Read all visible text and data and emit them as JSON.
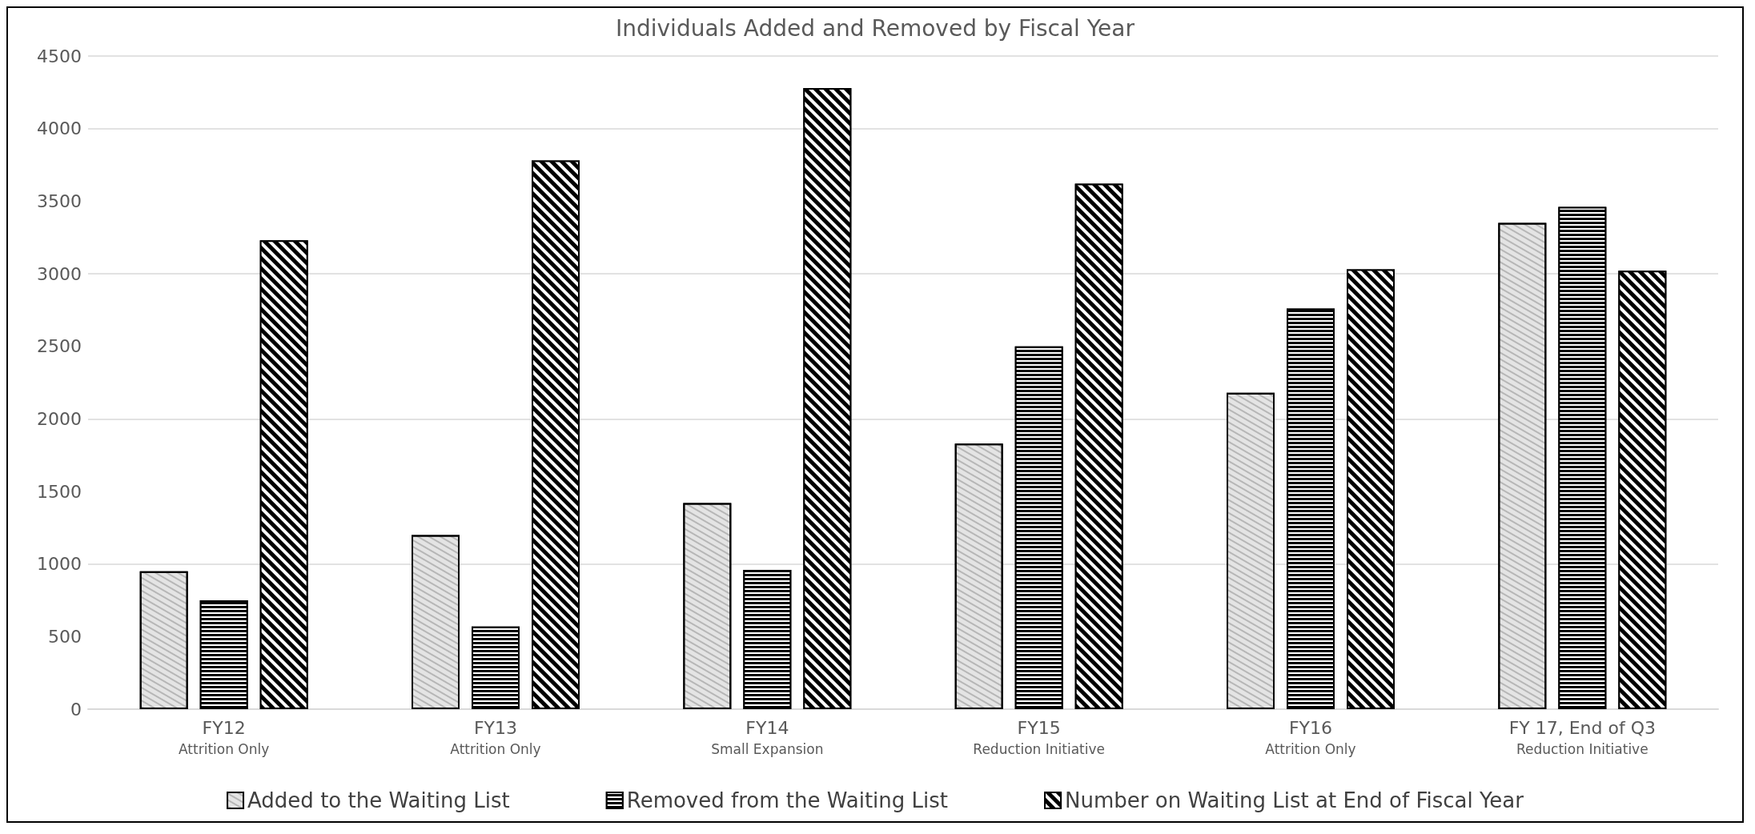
{
  "chart_data": {
    "type": "bar",
    "title": "Individuals Added and Removed by Fiscal Year",
    "categories": [
      "FY12\nAttrition Only",
      "FY13\nAttrition Only",
      "FY14\nSmall Expansion",
      "FY15\nReduction Initiative",
      "FY16\nAttrition Only",
      "FY 17, End of Q3\nReduction Initiative"
    ],
    "series": [
      {
        "name": "Added to the Waiting List",
        "color": "#e4e4e4",
        "values": [
          950,
          1200,
          1420,
          1830,
          2180,
          3350
        ]
      },
      {
        "name": "Removed from the Waiting List",
        "color": "#000000",
        "values": [
          750,
          570,
          960,
          2500,
          2760,
          3460
        ]
      },
      {
        "name": "Number on Waiting List at End of Fiscal Year",
        "color": "#000000",
        "values": [
          3230,
          3780,
          4280,
          3620,
          3030,
          3020
        ]
      }
    ],
    "ylim": [
      0,
      4500
    ],
    "yticks": [
      0,
      500,
      1000,
      1500,
      2000,
      2500,
      3000,
      3500,
      4000,
      4500
    ],
    "grid": "y",
    "legend": "bottom"
  }
}
